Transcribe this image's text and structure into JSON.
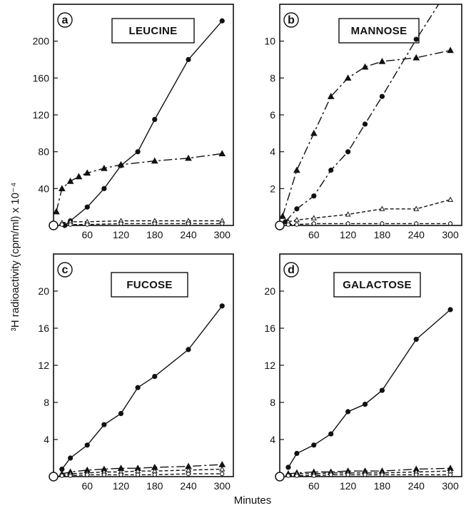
{
  "figure": {
    "ylabel": "³H radioactivity (cpm/ml) x 10⁻⁴",
    "xlabel": "Minutes"
  },
  "chart_data": [
    {
      "type": "line",
      "panel": "a",
      "title": "LEUCINE",
      "xlim": [
        0,
        320
      ],
      "ylim": [
        0,
        240
      ],
      "xticks": [
        60,
        120,
        180,
        240,
        300
      ],
      "yticks": [
        40,
        80,
        120,
        160,
        200
      ],
      "series": [
        {
          "marker": "filled-circle",
          "style": "solid",
          "x": [
            20,
            30,
            60,
            90,
            120,
            150,
            180,
            240,
            300
          ],
          "y": [
            0,
            5,
            20,
            40,
            65,
            80,
            115,
            180,
            222
          ]
        },
        {
          "marker": "filled-triangle",
          "style": "dash-dot",
          "x": [
            5,
            15,
            30,
            45,
            60,
            90,
            120,
            180,
            240,
            300
          ],
          "y": [
            15,
            40,
            48,
            53,
            57,
            62,
            66,
            70,
            73,
            78
          ]
        },
        {
          "marker": "open-triangle",
          "style": "dashed",
          "x": [
            15,
            30,
            60,
            120,
            180,
            240,
            300
          ],
          "y": [
            3,
            4,
            4,
            5,
            5,
            5,
            5
          ]
        },
        {
          "marker": "open-circle",
          "style": "dashed",
          "x": [
            15,
            30,
            60,
            120,
            180,
            240,
            300
          ],
          "y": [
            1,
            1,
            1,
            2,
            2,
            2,
            2
          ]
        }
      ]
    },
    {
      "type": "line",
      "panel": "b",
      "title": "MANNOSE",
      "xlim": [
        0,
        320
      ],
      "ylim": [
        0,
        12
      ],
      "xticks": [
        60,
        120,
        180,
        240,
        300
      ],
      "yticks": [
        2,
        4,
        6,
        8,
        10
      ],
      "series": [
        {
          "marker": "filled-circle",
          "style": "dash-dot",
          "x": [
            10,
            30,
            60,
            90,
            120,
            150,
            180,
            240,
            300
          ],
          "y": [
            0.2,
            0.9,
            1.6,
            3.0,
            4.0,
            5.5,
            7.0,
            10.1,
            13.0
          ]
        },
        {
          "marker": "filled-triangle",
          "style": "dash-dot",
          "x": [
            5,
            30,
            60,
            90,
            120,
            150,
            180,
            240,
            300
          ],
          "y": [
            0.5,
            3.0,
            5.0,
            7.0,
            8.0,
            8.6,
            8.9,
            9.1,
            9.5
          ]
        },
        {
          "marker": "open-triangle",
          "style": "dashed",
          "x": [
            15,
            30,
            60,
            120,
            180,
            240,
            300
          ],
          "y": [
            0.2,
            0.3,
            0.4,
            0.6,
            0.9,
            0.9,
            1.4
          ]
        },
        {
          "marker": "open-circle",
          "style": "dashed",
          "x": [
            15,
            30,
            60,
            120,
            180,
            240,
            300
          ],
          "y": [
            0.05,
            0.05,
            0.1,
            0.1,
            0.1,
            0.1,
            0.1
          ]
        }
      ]
    },
    {
      "type": "line",
      "panel": "c",
      "title": "FUCOSE",
      "xlim": [
        0,
        320
      ],
      "ylim": [
        0,
        24
      ],
      "xticks": [
        60,
        120,
        180,
        240,
        300
      ],
      "yticks": [
        4,
        8,
        12,
        16,
        20
      ],
      "series": [
        {
          "marker": "filled-circle",
          "style": "solid",
          "x": [
            15,
            30,
            60,
            90,
            120,
            150,
            180,
            240,
            300
          ],
          "y": [
            0.8,
            2.0,
            3.4,
            5.6,
            6.8,
            9.6,
            10.8,
            13.7,
            18.4
          ]
        },
        {
          "marker": "filled-triangle",
          "style": "dash-dot",
          "x": [
            15,
            30,
            60,
            90,
            120,
            150,
            180,
            240,
            300
          ],
          "y": [
            0.3,
            0.5,
            0.7,
            0.8,
            0.9,
            0.9,
            1.0,
            1.1,
            1.3
          ]
        },
        {
          "marker": "open-triangle",
          "style": "dashed",
          "x": [
            15,
            30,
            60,
            90,
            120,
            150,
            180,
            240,
            300
          ],
          "y": [
            0.2,
            0.3,
            0.4,
            0.5,
            0.5,
            0.6,
            0.6,
            0.7,
            0.8
          ]
        },
        {
          "marker": "open-circle",
          "style": "dashed",
          "x": [
            15,
            30,
            60,
            90,
            120,
            150,
            180,
            240,
            300
          ],
          "y": [
            0.1,
            0.1,
            0.2,
            0.2,
            0.2,
            0.2,
            0.2,
            0.3,
            0.3
          ]
        }
      ]
    },
    {
      "type": "line",
      "panel": "d",
      "title": "GALACTOSE",
      "xlim": [
        0,
        320
      ],
      "ylim": [
        0,
        24
      ],
      "xticks": [
        60,
        120,
        180,
        240,
        300
      ],
      "yticks": [
        4,
        8,
        12,
        16,
        20
      ],
      "series": [
        {
          "marker": "filled-circle",
          "style": "solid",
          "x": [
            15,
            30,
            60,
            90,
            120,
            150,
            180,
            240,
            300
          ],
          "y": [
            1.0,
            2.5,
            3.4,
            4.6,
            7.0,
            7.8,
            9.3,
            14.8,
            18.0
          ]
        },
        {
          "marker": "filled-triangle",
          "style": "dash-dot",
          "x": [
            15,
            30,
            60,
            90,
            120,
            150,
            180,
            240,
            300
          ],
          "y": [
            0.3,
            0.4,
            0.5,
            0.5,
            0.6,
            0.6,
            0.6,
            0.8,
            0.9
          ]
        },
        {
          "marker": "open-triangle",
          "style": "dashed",
          "x": [
            15,
            30,
            60,
            90,
            120,
            150,
            180,
            240,
            300
          ],
          "y": [
            0.2,
            0.3,
            0.3,
            0.4,
            0.4,
            0.4,
            0.4,
            0.5,
            0.6
          ]
        },
        {
          "marker": "open-circle",
          "style": "dashed",
          "x": [
            15,
            30,
            60,
            90,
            120,
            150,
            180,
            240,
            300
          ],
          "y": [
            0.1,
            0.1,
            0.1,
            0.2,
            0.2,
            0.2,
            0.2,
            0.2,
            0.2
          ]
        }
      ]
    }
  ]
}
